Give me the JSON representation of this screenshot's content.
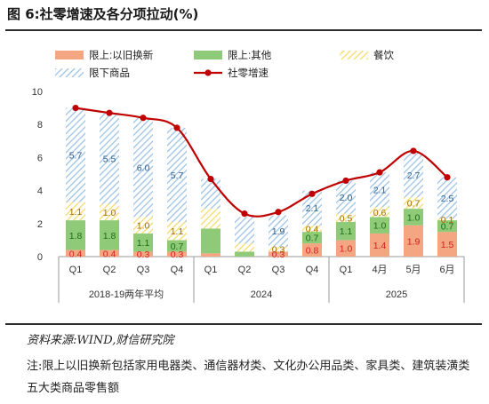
{
  "figure": {
    "title": "图 6:社零增速及各分项拉动(%)",
    "source": "资料来源:WIND,财信研究院",
    "note": "注:限上以旧换新包括家用电器类、通信器材类、文化办公用品类、家具类、建筑装潢类五大类商品零售额"
  },
  "colors": {
    "trade_in": "#f4a582",
    "other": "#8fca78",
    "catering": "#f6dd6a",
    "below": "#9ec3e6",
    "line": "#c00000",
    "label_trade_in": "#d02020",
    "label_other": "#1a6b1a",
    "label_catering": "#a36a00",
    "label_below": "#2f5f8f"
  },
  "chart_data": {
    "type": "bar",
    "stacked": true,
    "categories": [
      "Q1",
      "Q2",
      "Q3",
      "Q4",
      "Q1",
      "Q2",
      "Q3",
      "Q4",
      "Q1",
      "4月",
      "5月",
      "6月"
    ],
    "groups": [
      {
        "label": "2018-19两年平均",
        "from": 0,
        "to": 3
      },
      {
        "label": "2024",
        "from": 4,
        "to": 7
      },
      {
        "label": "2025",
        "from": 8,
        "to": 11
      }
    ],
    "ylim": [
      0,
      10
    ],
    "yticks": [
      0,
      2,
      4,
      6,
      8,
      10
    ],
    "legend_position": "top",
    "series": [
      {
        "name": "限上:以旧换新",
        "key": "trade_in",
        "values": [
          0.4,
          0.4,
          0.3,
          0.3,
          0.2,
          0.0,
          0.3,
          0.8,
          1.0,
          1.4,
          1.9,
          1.5
        ],
        "labels": [
          "0.4",
          "0.4",
          "0.3",
          "0.3",
          "",
          "",
          "0.3",
          "0.8",
          "1.0",
          "1.4",
          "1.9",
          "1.5"
        ]
      },
      {
        "name": "限上:其他",
        "key": "other",
        "values": [
          1.8,
          1.8,
          1.1,
          0.7,
          1.5,
          0.3,
          0.0,
          0.7,
          1.1,
          1.0,
          1.0,
          0.7
        ],
        "labels": [
          "1.8",
          "1.8",
          "1.1",
          "0.7",
          "",
          "",
          "",
          "0.7",
          "1.1",
          "1.0",
          "1.0",
          "0.7"
        ]
      },
      {
        "name": "餐饮",
        "key": "catering",
        "values": [
          1.1,
          1.0,
          1.0,
          1.1,
          1.2,
          0.5,
          0.3,
          0.4,
          0.5,
          0.6,
          0.7,
          0.1
        ],
        "labels": [
          "1.1",
          "1.0",
          "1.0",
          "1.1",
          "",
          "",
          "0.3",
          "0.4",
          "0.5",
          "0.6",
          "0.7",
          "0.1"
        ]
      },
      {
        "name": "限下商品",
        "key": "below",
        "values": [
          5.7,
          5.5,
          6.0,
          5.7,
          1.8,
          1.6,
          1.9,
          2.1,
          2.0,
          2.1,
          2.7,
          2.5
        ],
        "labels": [
          "5.7",
          "5.5",
          "6.0",
          "5.7",
          "",
          "",
          "1.9",
          "2.1",
          "2.0",
          "2.1",
          "2.7",
          "2.5"
        ]
      }
    ],
    "line": {
      "name": "社零增速",
      "values": [
        9.0,
        8.7,
        8.4,
        7.8,
        4.7,
        2.6,
        2.7,
        3.8,
        4.6,
        5.1,
        6.4,
        4.8
      ]
    }
  }
}
